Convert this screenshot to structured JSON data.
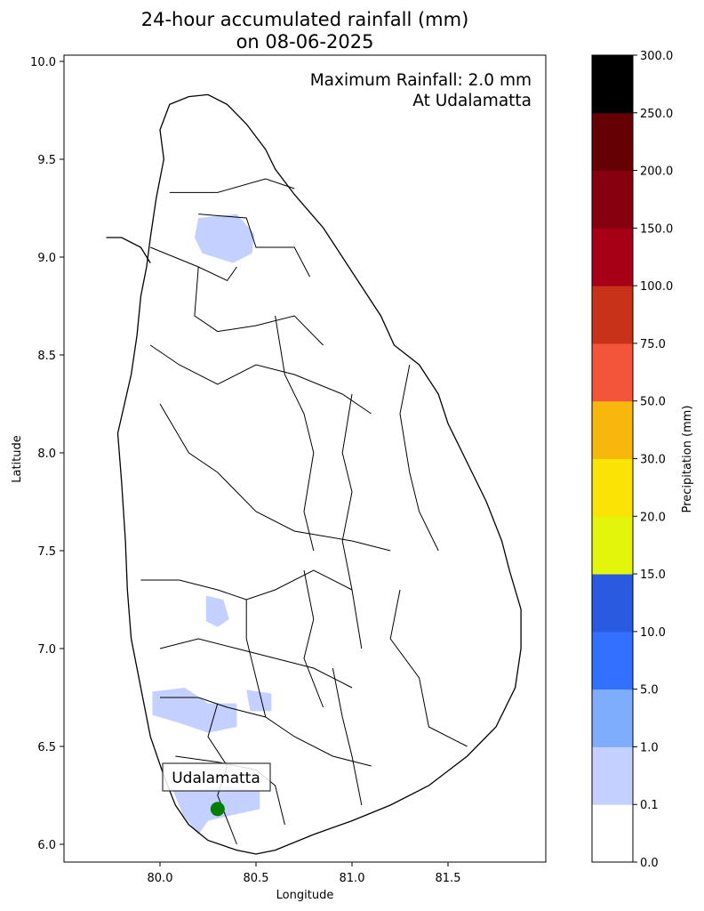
{
  "title_line1": "24-hour accumulated rainfall (mm)",
  "title_line2": "on 08-06-2025",
  "annotation_line1": "Maximum Rainfall: 2.0 mm",
  "annotation_line2": "At Udalamatta",
  "xlabel": "Longitude",
  "ylabel": "Latitude",
  "colorbar_label": "Precipitation (mm)",
  "station": {
    "name": "Udalamatta",
    "lon": 80.3,
    "lat": 6.18,
    "marker_color": "#007f00"
  },
  "chart_data": {
    "type": "heatmap",
    "title": "24-hour accumulated rainfall (mm) on 08-06-2025",
    "xlabel": "Longitude",
    "ylabel": "Latitude",
    "xlim": [
      79.5,
      82.0
    ],
    "ylim": [
      5.9,
      10.05
    ],
    "xticks": [
      "80.0",
      "80.5",
      "81.0",
      "81.5"
    ],
    "yticks": [
      "6.0",
      "6.5",
      "7.0",
      "7.5",
      "8.0",
      "8.5",
      "9.0",
      "9.5",
      "10.0"
    ],
    "max_rainfall_mm": 2.0,
    "max_location": "Udalamatta",
    "colorbar": {
      "label": "Precipitation (mm)",
      "ticks": [
        "0.0",
        "0.1",
        "1.0",
        "5.0",
        "10.0",
        "15.0",
        "20.0",
        "30.0",
        "50.0",
        "75.0",
        "100.0",
        "150.0",
        "200.0",
        "250.0",
        "300.0"
      ],
      "colors": [
        "#ffffff",
        "#c4d0ff",
        "#7fadfe",
        "#3370ff",
        "#295ae0",
        "#e3f50a",
        "#fae305",
        "#f8b70c",
        "#f2553a",
        "#c83218",
        "#a70016",
        "#860010",
        "#650005",
        "#000000"
      ]
    },
    "rain_areas": [
      {
        "name": "north-central",
        "value_range": "0.1-1.0",
        "points": [
          [
            80.2,
            9.2
          ],
          [
            80.4,
            9.22
          ],
          [
            80.49,
            9.12
          ],
          [
            80.48,
            9.02
          ],
          [
            80.38,
            8.97
          ],
          [
            80.22,
            9.02
          ],
          [
            80.18,
            9.1
          ]
        ]
      },
      {
        "name": "central-small",
        "value_range": "0.1-1.0",
        "points": [
          [
            80.24,
            7.27
          ],
          [
            80.33,
            7.25
          ],
          [
            80.36,
            7.15
          ],
          [
            80.3,
            7.11
          ],
          [
            80.24,
            7.14
          ]
        ]
      },
      {
        "name": "southwest",
        "value_range": "0.1-1.0",
        "points": [
          [
            79.96,
            6.78
          ],
          [
            80.13,
            6.8
          ],
          [
            80.25,
            6.72
          ],
          [
            80.4,
            6.72
          ],
          [
            80.4,
            6.6
          ],
          [
            80.25,
            6.57
          ],
          [
            80.1,
            6.62
          ],
          [
            79.96,
            6.66
          ]
        ]
      },
      {
        "name": "east-of-southwest",
        "value_range": "0.1-1.0",
        "points": [
          [
            80.45,
            6.79
          ],
          [
            80.58,
            6.77
          ],
          [
            80.58,
            6.68
          ],
          [
            80.47,
            6.68
          ]
        ]
      },
      {
        "name": "south-coast",
        "value_range": "0.1-1.0",
        "points": [
          [
            80.07,
            6.27
          ],
          [
            80.2,
            6.28
          ],
          [
            80.35,
            6.3
          ],
          [
            80.52,
            6.27
          ],
          [
            80.52,
            6.18
          ],
          [
            80.38,
            6.15
          ],
          [
            80.25,
            6.12
          ],
          [
            80.2,
            6.05
          ],
          [
            80.12,
            6.15
          ]
        ]
      }
    ]
  }
}
